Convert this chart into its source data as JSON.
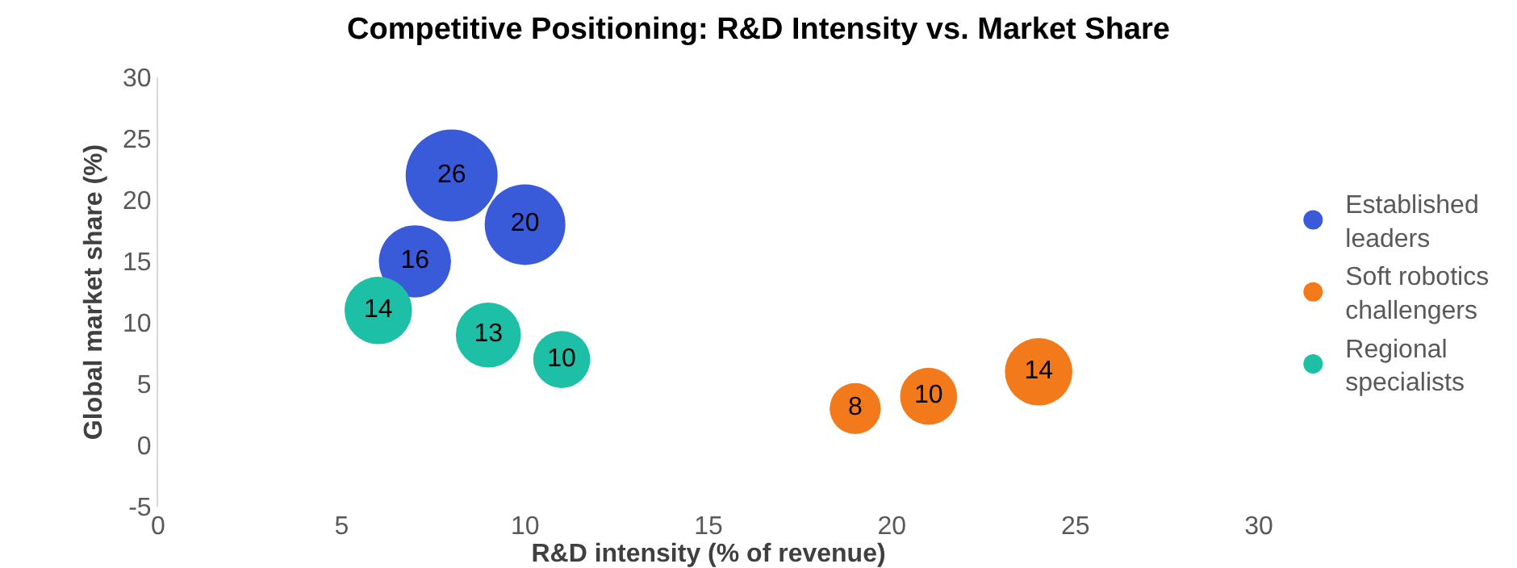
{
  "chart_data": {
    "type": "bubble",
    "title": "Competitive Positioning: R&D Intensity vs. Market Share",
    "xlabel": "R&D intensity (% of revenue)",
    "ylabel": "Global market share (%)",
    "series": [
      {
        "name": "Established leaders",
        "color": "#3a5bd9",
        "x": [
          8,
          10,
          7
        ],
        "values": [
          22,
          18,
          15
        ],
        "sizes": [
          26,
          20,
          16
        ],
        "value_labels": [
          "26",
          "20",
          "16"
        ]
      },
      {
        "name": "Soft robotics challengers",
        "color": "#f27a1a",
        "x": [
          19,
          21,
          24
        ],
        "values": [
          3,
          4,
          6
        ],
        "sizes": [
          8,
          10,
          14
        ],
        "value_labels": [
          "8",
          "10",
          "14"
        ]
      },
      {
        "name": "Regional specialists",
        "color": "#1dbfa6",
        "x": [
          6,
          9,
          11
        ],
        "values": [
          11,
          9,
          7
        ],
        "sizes": [
          14,
          13,
          10
        ],
        "value_labels": [
          "14",
          "13",
          "10"
        ]
      }
    ],
    "xlim": [
      0,
      30
    ],
    "xticks": [
      0,
      5,
      10,
      15,
      20,
      25,
      30
    ],
    "ylim": [
      -5,
      30
    ],
    "yticks": [
      -5,
      0,
      5,
      10,
      15,
      20,
      25,
      30
    ],
    "grid": false,
    "legend": "right"
  }
}
